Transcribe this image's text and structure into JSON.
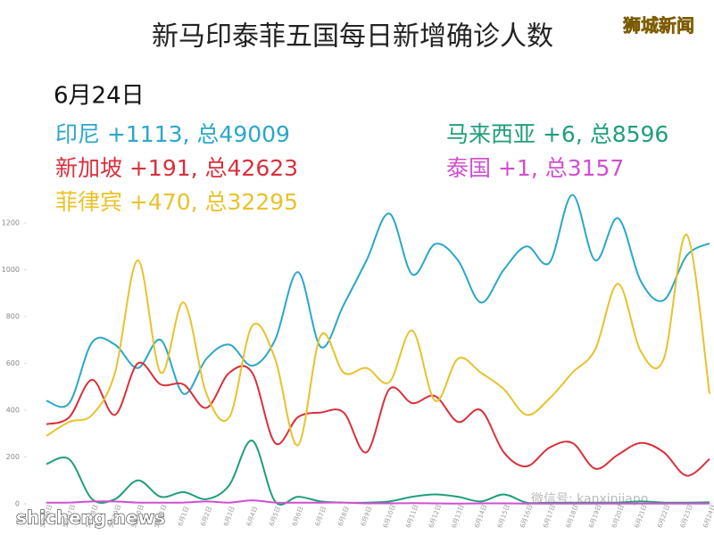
{
  "chart_data": {
    "type": "line",
    "title": "新马印泰菲五国每日新增确诊人数",
    "badge": "狮城新闻",
    "date": "6月24日",
    "source": "shicheng.news",
    "wechat": "微信号: kanxinjiapo",
    "categories": [
      "5月26日",
      "5月27日",
      "5月28日",
      "5月29日",
      "5月30日",
      "5月31日",
      "6月1日",
      "6月2日",
      "6月3日",
      "6月4日",
      "6月5日",
      "6月6日",
      "6月7日",
      "6月8日",
      "6月9日",
      "6月10日",
      "6月11日",
      "6月12日",
      "6月13日",
      "6月14日",
      "6月15日",
      "6月16日",
      "6月17日",
      "6月18日",
      "6月19日",
      "6月20日",
      "6月21日",
      "6月22日",
      "6月23日",
      "6月24日"
    ],
    "ylim": [
      0,
      1200
    ],
    "yticks": [
      0,
      200,
      400,
      600,
      800,
      1000,
      1200
    ],
    "series": [
      {
        "name": "印尼",
        "summary": "+1113, 总49009",
        "color": "#2aa7c9",
        "values": [
          440,
          430,
          690,
          680,
          580,
          700,
          470,
          620,
          680,
          590,
          700,
          990,
          670,
          850,
          1040,
          1240,
          980,
          1110,
          1040,
          860,
          1000,
          1100,
          1030,
          1320,
          1040,
          1220,
          950,
          870,
          1060,
          1113
        ]
      },
      {
        "name": "新加坡",
        "summary": "+191, 总42623",
        "color": "#d9303c",
        "values": [
          340,
          370,
          530,
          380,
          600,
          510,
          510,
          410,
          560,
          560,
          260,
          370,
          390,
          390,
          220,
          490,
          430,
          460,
          350,
          400,
          220,
          160,
          240,
          260,
          150,
          210,
          260,
          220,
          120,
          191
        ]
      },
      {
        "name": "菲律宾",
        "summary": "+470, 总32295",
        "color": "#e8c22a",
        "values": [
          290,
          350,
          380,
          560,
          1040,
          560,
          860,
          470,
          370,
          760,
          620,
          250,
          720,
          560,
          580,
          520,
          740,
          440,
          620,
          560,
          490,
          380,
          450,
          560,
          660,
          940,
          650,
          620,
          1150,
          470
        ]
      },
      {
        "name": "马来西亚",
        "summary": "+6, 总8596",
        "color": "#1f9e7c",
        "values": [
          170,
          190,
          20,
          20,
          100,
          30,
          50,
          20,
          80,
          270,
          10,
          30,
          10,
          5,
          5,
          10,
          30,
          40,
          30,
          10,
          40,
          5,
          5,
          5,
          5,
          5,
          10,
          5,
          5,
          6
        ]
      },
      {
        "name": "泰国",
        "summary": "+1, 总3157",
        "color": "#d04fd0",
        "values": [
          5,
          5,
          10,
          10,
          5,
          5,
          5,
          10,
          5,
          15,
          5,
          5,
          5,
          5,
          2,
          2,
          3,
          2,
          1,
          2,
          2,
          1,
          1,
          1,
          1,
          1,
          1,
          1,
          1,
          1
        ]
      }
    ]
  }
}
